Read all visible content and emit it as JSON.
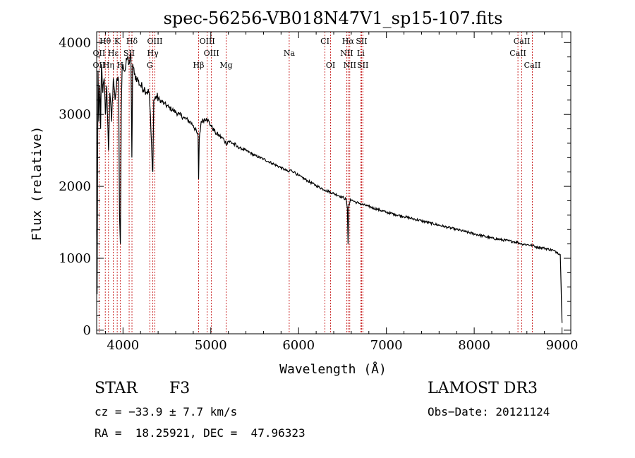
{
  "chart_data": {
    "type": "line",
    "title": "spec-56256-VB018N47V1_sp15-107.fits",
    "xlabel": "Wavelength (Å)",
    "ylabel": "Flux (relative)",
    "xlim": [
      3700,
      9100
    ],
    "ylim": [
      -50,
      4150
    ],
    "xticks": [
      4000,
      5000,
      6000,
      7000,
      8000,
      9000
    ],
    "xtick_labels": [
      "4000",
      "5000",
      "6000",
      "7000",
      "8000",
      "9000"
    ],
    "yticks": [
      0,
      1000,
      2000,
      3000,
      4000
    ],
    "ytick_labels": [
      "0",
      "1000",
      "2000",
      "3000",
      "4000"
    ],
    "grid": false,
    "series": [
      {
        "name": "spectrum",
        "x": [
          3700,
          3705,
          3715,
          3725,
          3735,
          3745,
          3755,
          3770,
          3785,
          3800,
          3815,
          3835,
          3850,
          3870,
          3890,
          3910,
          3930,
          3950,
          3960,
          3970,
          3980,
          3990,
          4000,
          4020,
          4050,
          4070,
          4090,
          4101,
          4110,
          4130,
          4160,
          4200,
          4250,
          4300,
          4330,
          4340,
          4350,
          4380,
          4420,
          4470,
          4520,
          4580,
          4640,
          4700,
          4760,
          4800,
          4840,
          4855,
          4861,
          4868,
          4890,
          4950,
          5000,
          5050,
          5100,
          5150,
          5175,
          5200,
          5250,
          5300,
          5400,
          5500,
          5600,
          5700,
          5800,
          5890,
          5900,
          5950,
          6000,
          6100,
          6200,
          6300,
          6400,
          6500,
          6540,
          6555,
          6563,
          6570,
          6590,
          6620,
          6650,
          6700,
          6800,
          6900,
          7000,
          7100,
          7200,
          7300,
          7400,
          7500,
          7600,
          7700,
          7800,
          7900,
          8000,
          8100,
          8200,
          8300,
          8400,
          8450,
          8498,
          8542,
          8600,
          8662,
          8700,
          8800,
          8900,
          8950,
          8980,
          8990,
          9000
        ],
        "y": [
          1400,
          500,
          3600,
          2900,
          3400,
          2800,
          3700,
          3300,
          3500,
          3000,
          3400,
          2500,
          3300,
          2900,
          3500,
          3200,
          3500,
          3450,
          1600,
          1200,
          3000,
          3650,
          3700,
          3600,
          3800,
          3700,
          3850,
          2400,
          3700,
          3550,
          3500,
          3400,
          3350,
          3300,
          2400,
          2200,
          3200,
          3250,
          3200,
          3150,
          3100,
          3050,
          3000,
          2950,
          2900,
          2850,
          2750,
          2700,
          2100,
          2650,
          2900,
          2950,
          2850,
          2750,
          2700,
          2650,
          2600,
          2630,
          2600,
          2550,
          2500,
          2430,
          2380,
          2320,
          2260,
          2200,
          2230,
          2200,
          2150,
          2080,
          2010,
          1950,
          1900,
          1850,
          1820,
          1700,
          1200,
          1700,
          1820,
          1800,
          1780,
          1760,
          1720,
          1680,
          1640,
          1610,
          1580,
          1550,
          1520,
          1490,
          1460,
          1430,
          1400,
          1370,
          1340,
          1310,
          1280,
          1260,
          1240,
          1230,
          1220,
          1200,
          1190,
          1180,
          1160,
          1140,
          1110,
          1080,
          1050,
          600,
          100
        ]
      }
    ],
    "lines": {
      "labels": [
        {
          "text": "Hθ",
          "at": 3798,
          "row": 1
        },
        {
          "text": "K",
          "at": 3934,
          "row": 1
        },
        {
          "text": "Hδ",
          "at": 4102,
          "row": 1
        },
        {
          "text": "OIII",
          "at": 4363,
          "row": 1
        },
        {
          "text": "OIII",
          "at": 4959,
          "row": 1
        },
        {
          "text": "CI",
          "at": 6300,
          "row": 1
        },
        {
          "text": "Hα",
          "at": 6563,
          "row": 1
        },
        {
          "text": "SII",
          "at": 6717,
          "row": 1
        },
        {
          "text": "CaII",
          "at": 8542,
          "row": 1
        },
        {
          "text": "OII",
          "at": 3727,
          "row": 2
        },
        {
          "text": "Hε",
          "at": 3889,
          "row": 2
        },
        {
          "text": "SII",
          "at": 4070,
          "row": 2
        },
        {
          "text": "Hγ",
          "at": 4340,
          "row": 2
        },
        {
          "text": "OIII",
          "at": 5007,
          "row": 2
        },
        {
          "text": "Na",
          "at": 5893,
          "row": 2
        },
        {
          "text": "NII",
          "at": 6548,
          "row": 2
        },
        {
          "text": "Li",
          "at": 6708,
          "row": 2
        },
        {
          "text": "CaII",
          "at": 8498,
          "row": 2
        },
        {
          "text": "OII",
          "at": 3727,
          "row": 3
        },
        {
          "text": "Hη",
          "at": 3835,
          "row": 3
        },
        {
          "text": "H",
          "at": 3968,
          "row": 3
        },
        {
          "text": "G",
          "at": 4305,
          "row": 3
        },
        {
          "text": "Hβ",
          "at": 4861,
          "row": 3
        },
        {
          "text": "Mg",
          "at": 5175,
          "row": 3
        },
        {
          "text": "OI",
          "at": 6364,
          "row": 3
        },
        {
          "text": "NII",
          "at": 6583,
          "row": 3
        },
        {
          "text": "SII",
          "at": 6731,
          "row": 3
        },
        {
          "text": "CaII",
          "at": 8662,
          "row": 3
        }
      ],
      "markers": [
        3727,
        3798,
        3835,
        3889,
        3934,
        3968,
        4070,
        4102,
        4305,
        4340,
        4363,
        4861,
        4959,
        5007,
        5175,
        5893,
        6300,
        6364,
        6548,
        6563,
        6583,
        6708,
        6717,
        6731,
        8498,
        8542,
        8662
      ],
      "color": "#c00000"
    }
  },
  "info": {
    "class": "STAR",
    "subclass": "F3",
    "survey": "LAMOST DR3",
    "cz": "cz = −33.9 ± 7.7 km/s",
    "obs_date": "Obs−Date: 20121124",
    "coords": "RA =  18.25921, DEC =  47.96323"
  }
}
